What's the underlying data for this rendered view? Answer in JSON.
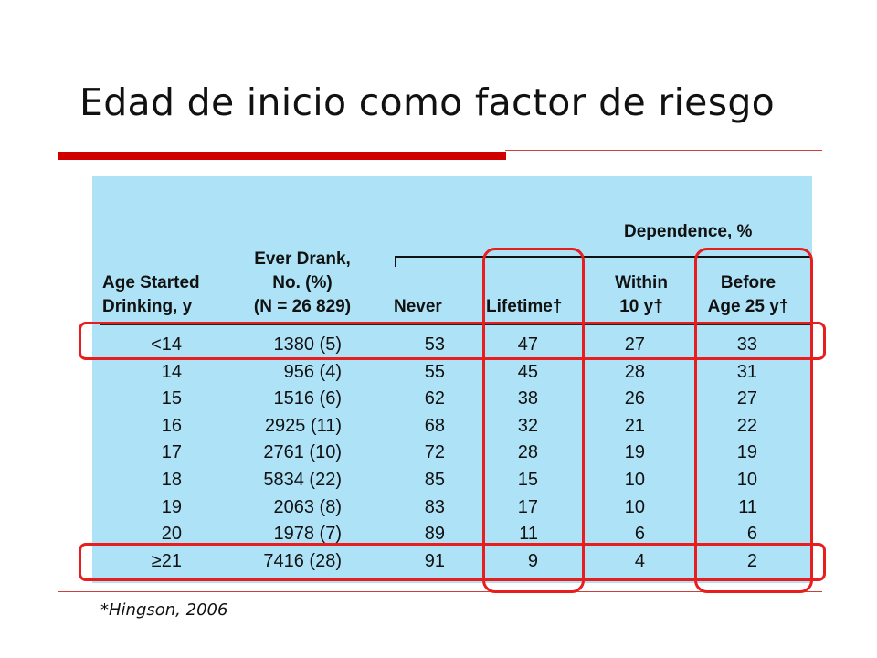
{
  "slide": {
    "title": "Edad de inicio como factor de riesgo",
    "footnote": "*Hingson, 2006"
  },
  "table": {
    "group_header": "Dependence, %",
    "columns": [
      [
        "Age Started",
        "Drinking, y"
      ],
      [
        "Ever Drank,",
        "No. (%)",
        "(N = 26 829)"
      ],
      [
        "Never"
      ],
      [
        "Lifetime†"
      ],
      [
        "Within",
        "10 y†"
      ],
      [
        "Before",
        "Age 25 y†"
      ]
    ],
    "rows": [
      [
        "<14",
        "1380 (5)",
        "53",
        "47",
        "27",
        "33"
      ],
      [
        "14",
        "956 (4)",
        "55",
        "45",
        "28",
        "31"
      ],
      [
        "15",
        "1516 (6)",
        "62",
        "38",
        "26",
        "27"
      ],
      [
        "16",
        "2925 (11)",
        "68",
        "32",
        "21",
        "22"
      ],
      [
        "17",
        "2761 (10)",
        "72",
        "28",
        "19",
        "19"
      ],
      [
        "18",
        "5834 (22)",
        "85",
        "15",
        "10",
        "10"
      ],
      [
        "19",
        "2063 (8)",
        "83",
        "17",
        "10",
        "11"
      ],
      [
        "20",
        "1978 (7)",
        "89",
        "11",
        "6",
        "6"
      ],
      [
        "≥21",
        "7416 (28)",
        "91",
        "9",
        "4",
        "2"
      ]
    ]
  },
  "highlight_color": "#e81e1e",
  "panel_color": "#aee3f7",
  "accent_color": "#d00000"
}
